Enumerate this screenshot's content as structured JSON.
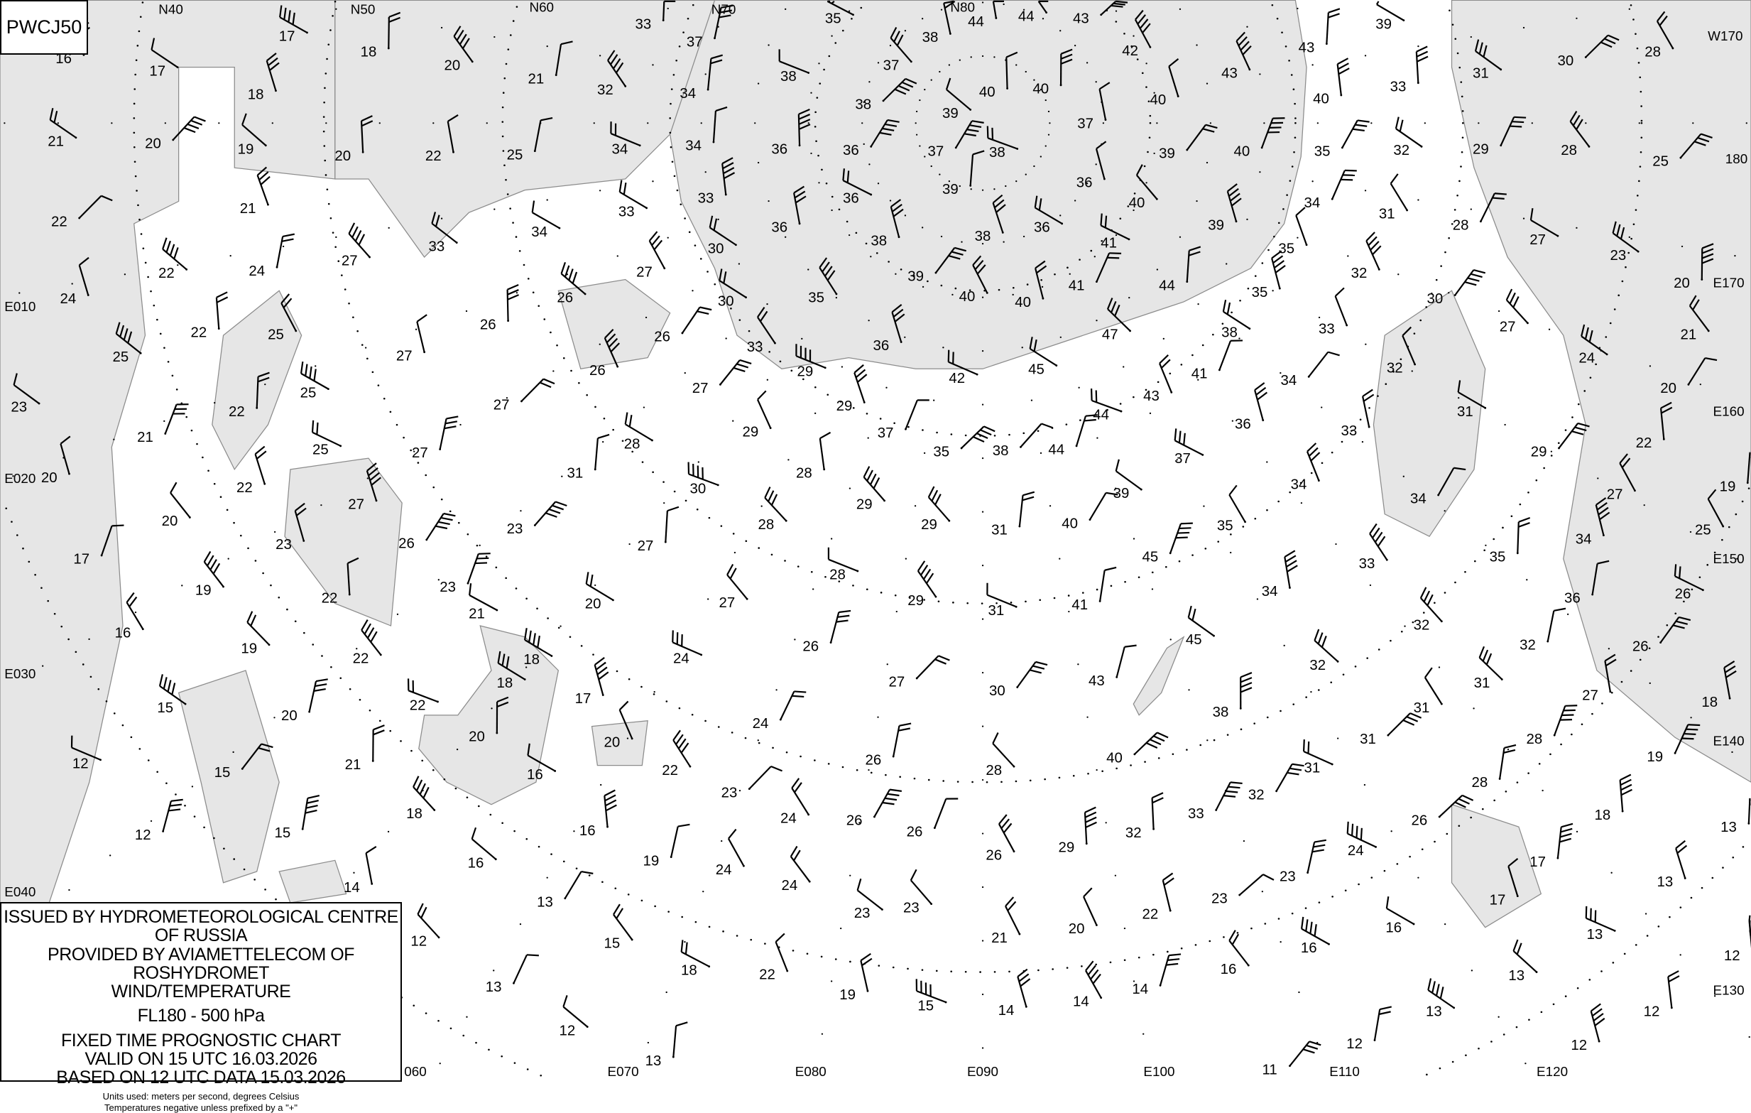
{
  "chart_id": "PWCJ50",
  "legend": {
    "line1": "ISSUED BY HYDROMETEOROLOGICAL CENTRE OF RUSSIA",
    "line2": "PROVIDED BY AVIAMETTELECOM OF ROSHYDROMET",
    "line3": "WIND/TEMPERATURE",
    "level": "FL180 - 500 hPa",
    "chart_type": "FIXED TIME PROGNOSTIC CHART",
    "valid": "VALID ON 15 UTC 16.03.2026",
    "based": "BASED ON 12 UTC DATA 15.03.2026",
    "units": "Units used: meters per second, degrees Celsius",
    "note": "Temperatures negative unless prefixed by a \"+\""
  },
  "map": {
    "colors": {
      "land": "#ffffff",
      "sea": "#e6e6e6",
      "coast": "#8c8c8c",
      "ink": "#000000"
    },
    "grid_labels": [
      "N40",
      "N50",
      "N60",
      "N70",
      "N80",
      "W170",
      "180",
      "E170",
      "E160",
      "E150",
      "E140",
      "E130",
      "E120",
      "E110",
      "E100",
      "E090",
      "E080",
      "E070",
      "060",
      "E040",
      "E030",
      "E020",
      "E010"
    ],
    "temperatures": [
      "16",
      "17",
      "18",
      "17",
      "18",
      "20",
      "21",
      "22",
      "25",
      "20",
      "19",
      "20",
      "21",
      "22",
      "21",
      "24",
      "22",
      "24",
      "22",
      "25",
      "25",
      "25",
      "27",
      "27",
      "22",
      "21",
      "23",
      "20",
      "25",
      "27",
      "27",
      "22",
      "27",
      "23",
      "20",
      "17",
      "19",
      "26",
      "23",
      "23",
      "22",
      "16",
      "19",
      "20",
      "22",
      "22",
      "20",
      "18",
      "17",
      "21",
      "15",
      "15",
      "12",
      "12",
      "15",
      "18",
      "16",
      "16",
      "16",
      "13",
      "14",
      "15",
      "18",
      "12",
      "13",
      "12",
      "13",
      "22",
      "19",
      "15",
      "14",
      "14",
      "14",
      "16",
      "16",
      "16",
      "13",
      "13",
      "13",
      "12",
      "12",
      "13",
      "12",
      "11",
      "12",
      "13",
      "18",
      "19",
      "18",
      "17",
      "17",
      "26",
      "28",
      "28",
      "27",
      "26",
      "26",
      "34",
      "36",
      "32",
      "31",
      "31",
      "31",
      "31",
      "32",
      "32",
      "33",
      "35",
      "34",
      "27",
      "29",
      "31",
      "33",
      "34",
      "35",
      "37",
      "36",
      "34",
      "33",
      "32",
      "24",
      "20",
      "22",
      "25",
      "19",
      "27",
      "30",
      "32",
      "28",
      "27",
      "23",
      "20",
      "21",
      "31",
      "25",
      "29",
      "28",
      "31",
      "30",
      "28",
      "33",
      "32",
      "35",
      "40",
      "43",
      "39",
      "43",
      "40",
      "39",
      "40",
      "39",
      "40",
      "41",
      "42",
      "43",
      "44",
      "44",
      "38",
      "37",
      "40",
      "40",
      "37",
      "38",
      "36",
      "39",
      "36",
      "38",
      "38",
      "39",
      "37",
      "36",
      "36",
      "34",
      "34",
      "34",
      "32",
      "33",
      "37",
      "38",
      "35",
      "36",
      "36",
      "33",
      "33",
      "34",
      "33",
      "30",
      "30",
      "35",
      "38",
      "39",
      "40",
      "40",
      "41",
      "44",
      "35",
      "38",
      "35",
      "34",
      "47",
      "45",
      "41",
      "43",
      "44",
      "44",
      "42",
      "36",
      "29",
      "29",
      "37",
      "35",
      "38",
      "33",
      "27",
      "26",
      "26",
      "26",
      "26",
      "27",
      "28",
      "29",
      "28",
      "30",
      "31",
      "29",
      "29",
      "31",
      "40",
      "39",
      "45",
      "41",
      "31",
      "29",
      "28",
      "28",
      "27",
      "27",
      "20",
      "24",
      "26",
      "27",
      "30",
      "43",
      "45",
      "34",
      "38",
      "40",
      "28",
      "26",
      "24",
      "20",
      "22",
      "23",
      "24",
      "26",
      "26",
      "26",
      "29",
      "32",
      "33",
      "32",
      "23",
      "24",
      "23",
      "22",
      "20",
      "21",
      "23",
      "23",
      "24",
      "24",
      "19",
      "21",
      "18"
    ]
  }
}
